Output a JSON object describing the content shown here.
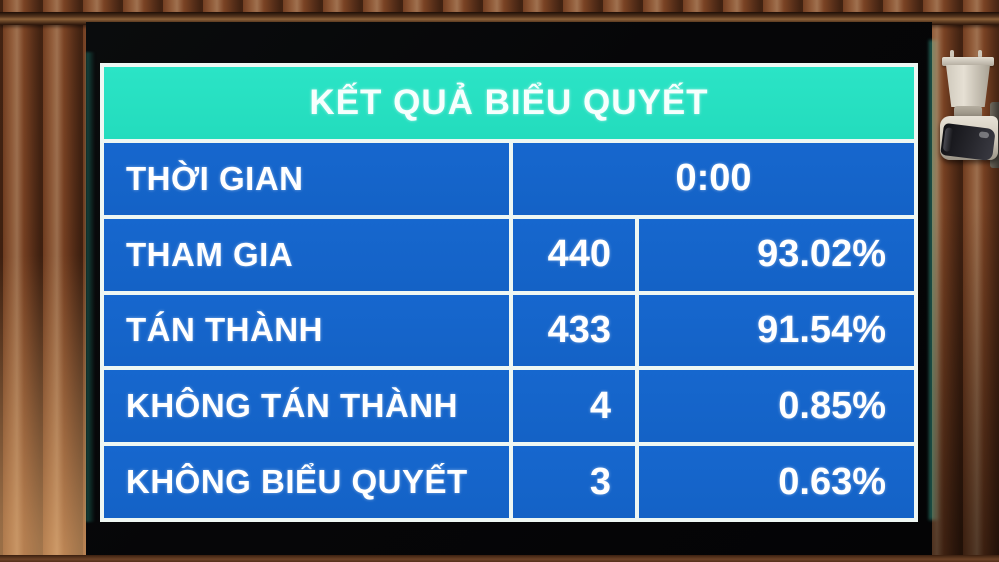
{
  "board": {
    "title": "KẾT QUẢ BIỂU QUYẾT",
    "rows": [
      {
        "label": "THỜI GIAN",
        "value": "0:00"
      },
      {
        "label": "THAM GIA",
        "count": "440",
        "percent": "93.02%"
      },
      {
        "label": "TÁN THÀNH",
        "count": "433",
        "percent": "91.54%"
      },
      {
        "label": "KHÔNG TÁN THÀNH",
        "count": "4",
        "percent": "0.85%"
      },
      {
        "label": "KHÔNG BIỂU QUYẾT",
        "count": "3",
        "percent": "0.63%"
      }
    ],
    "colors": {
      "header_bg": "#27e0c2",
      "cell_bg": "#1565cb",
      "grid": "#eef7f3",
      "text": "#ffffff"
    }
  }
}
